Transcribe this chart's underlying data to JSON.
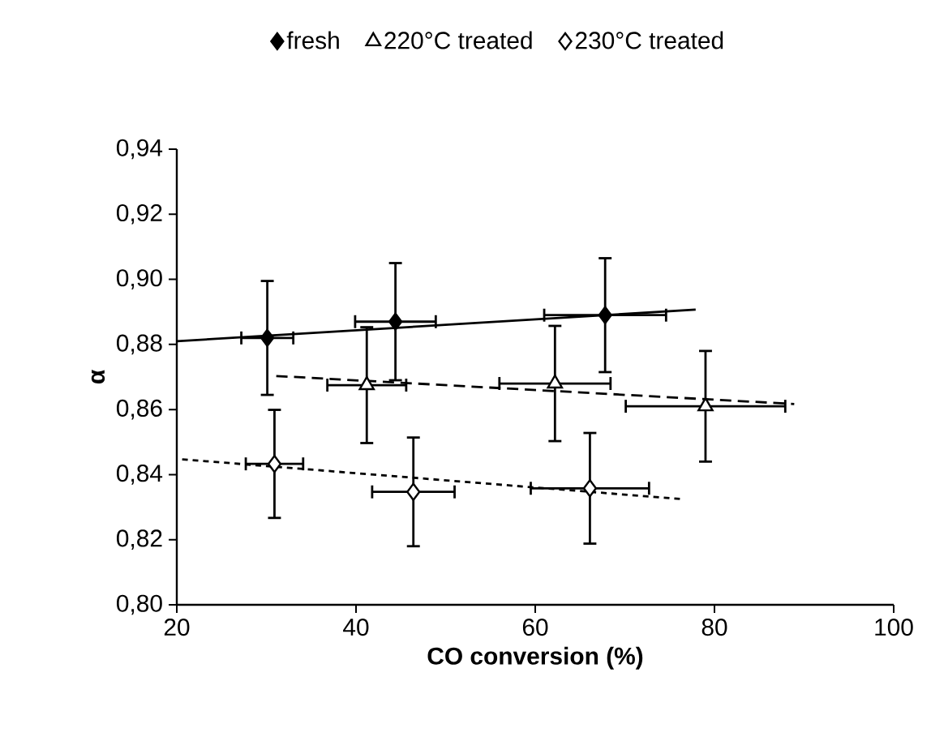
{
  "chart_data": {
    "type": "scatter",
    "xlabel": "CO conversion (%)",
    "ylabel": "α",
    "xlim": [
      20,
      100
    ],
    "ylim": [
      0.8,
      0.94
    ],
    "xticks": [
      20,
      40,
      60,
      80,
      100
    ],
    "yticks": [
      {
        "value": 0.8,
        "label": "0,80"
      },
      {
        "value": 0.82,
        "label": "0,82"
      },
      {
        "value": 0.84,
        "label": "0,84"
      },
      {
        "value": 0.86,
        "label": "0,86"
      },
      {
        "value": 0.88,
        "label": "0,88"
      },
      {
        "value": 0.9,
        "label": "0,90"
      },
      {
        "value": 0.92,
        "label": "0,92"
      },
      {
        "value": 0.94,
        "label": "0,94"
      }
    ],
    "legend": "top",
    "grid": false,
    "series": [
      {
        "name": "fresh",
        "marker": "diamond",
        "color": "#000000",
        "x": [
          30.1,
          44.4,
          67.8
        ],
        "values": [
          0.882,
          0.887,
          0.889
        ],
        "errors": [
          0.0175,
          0.018,
          0.0175
        ],
        "xerrors": [
          2.9,
          4.5,
          6.8
        ]
      },
      {
        "name": "220°C treated",
        "marker": "triangle",
        "color": "#ffffff",
        "x": [
          41.2,
          62.2,
          79.0
        ],
        "values": [
          0.8675,
          0.868,
          0.861
        ],
        "errors": [
          0.0178,
          0.0177,
          0.017
        ],
        "xerrors": [
          4.4,
          6.2,
          8.9
        ]
      },
      {
        "name": "230°C treated",
        "marker": "diamond",
        "color": "#ffffff",
        "x": [
          30.9,
          46.4,
          66.1
        ],
        "values": [
          0.8433,
          0.8347,
          0.8358
        ],
        "errors": [
          0.0166,
          0.0167,
          0.017
        ],
        "xerrors": [
          3.2,
          4.6,
          6.6
        ]
      },
      {
        "type": "line",
        "line_style": "solid",
        "marker": "none",
        "color": "#000000",
        "x": [
          20,
          77.9
        ],
        "values": [
          0.881,
          0.8907
        ]
      },
      {
        "type": "line",
        "line_style": "dashed",
        "marker": "none",
        "color": "#000000",
        "x": [
          31.1,
          88.9
        ],
        "values": [
          0.8703,
          0.8617
        ]
      },
      {
        "type": "line",
        "line_style": "dotted",
        "marker": "none",
        "color": "#000000",
        "x": [
          20.6,
          76.2
        ],
        "values": [
          0.8447,
          0.8325
        ]
      }
    ]
  }
}
